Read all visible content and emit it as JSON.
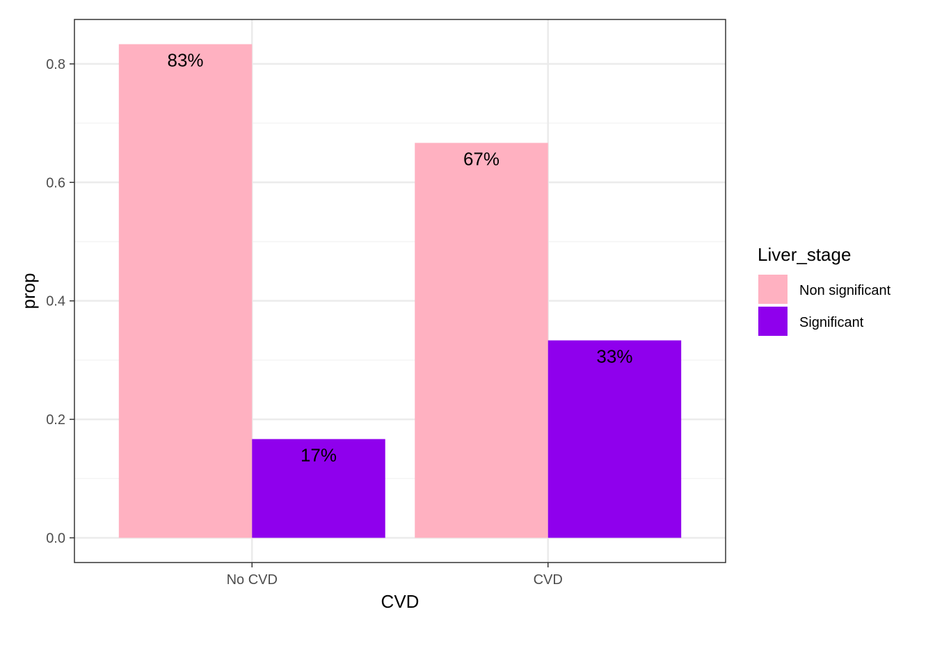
{
  "chart_data": {
    "type": "bar",
    "categories": [
      "No CVD",
      "CVD"
    ],
    "series": [
      {
        "name": "Non significant",
        "values": [
          0.8333,
          0.6667
        ],
        "labels": [
          "83%",
          "67%"
        ],
        "color": "#FFB1C1"
      },
      {
        "name": "Significant",
        "values": [
          0.1667,
          0.3333
        ],
        "labels": [
          "17%",
          "33%"
        ],
        "color": "#8F00ED"
      }
    ],
    "xlabel": "CVD",
    "ylabel": "prop",
    "ylim": [
      -0.0417,
      0.875
    ],
    "yticks": [
      0.0,
      0.2,
      0.4,
      0.6,
      0.8
    ],
    "ytick_labels": [
      "0.0",
      "0.2",
      "0.4",
      "0.6",
      "0.8"
    ],
    "grid": true,
    "legend": {
      "title": "Liver_stage",
      "placement": "right"
    },
    "colors": {
      "panel_border": "#333333",
      "grid_major": "#EBEBEB",
      "grid_minor": "#F4F4F4"
    }
  }
}
